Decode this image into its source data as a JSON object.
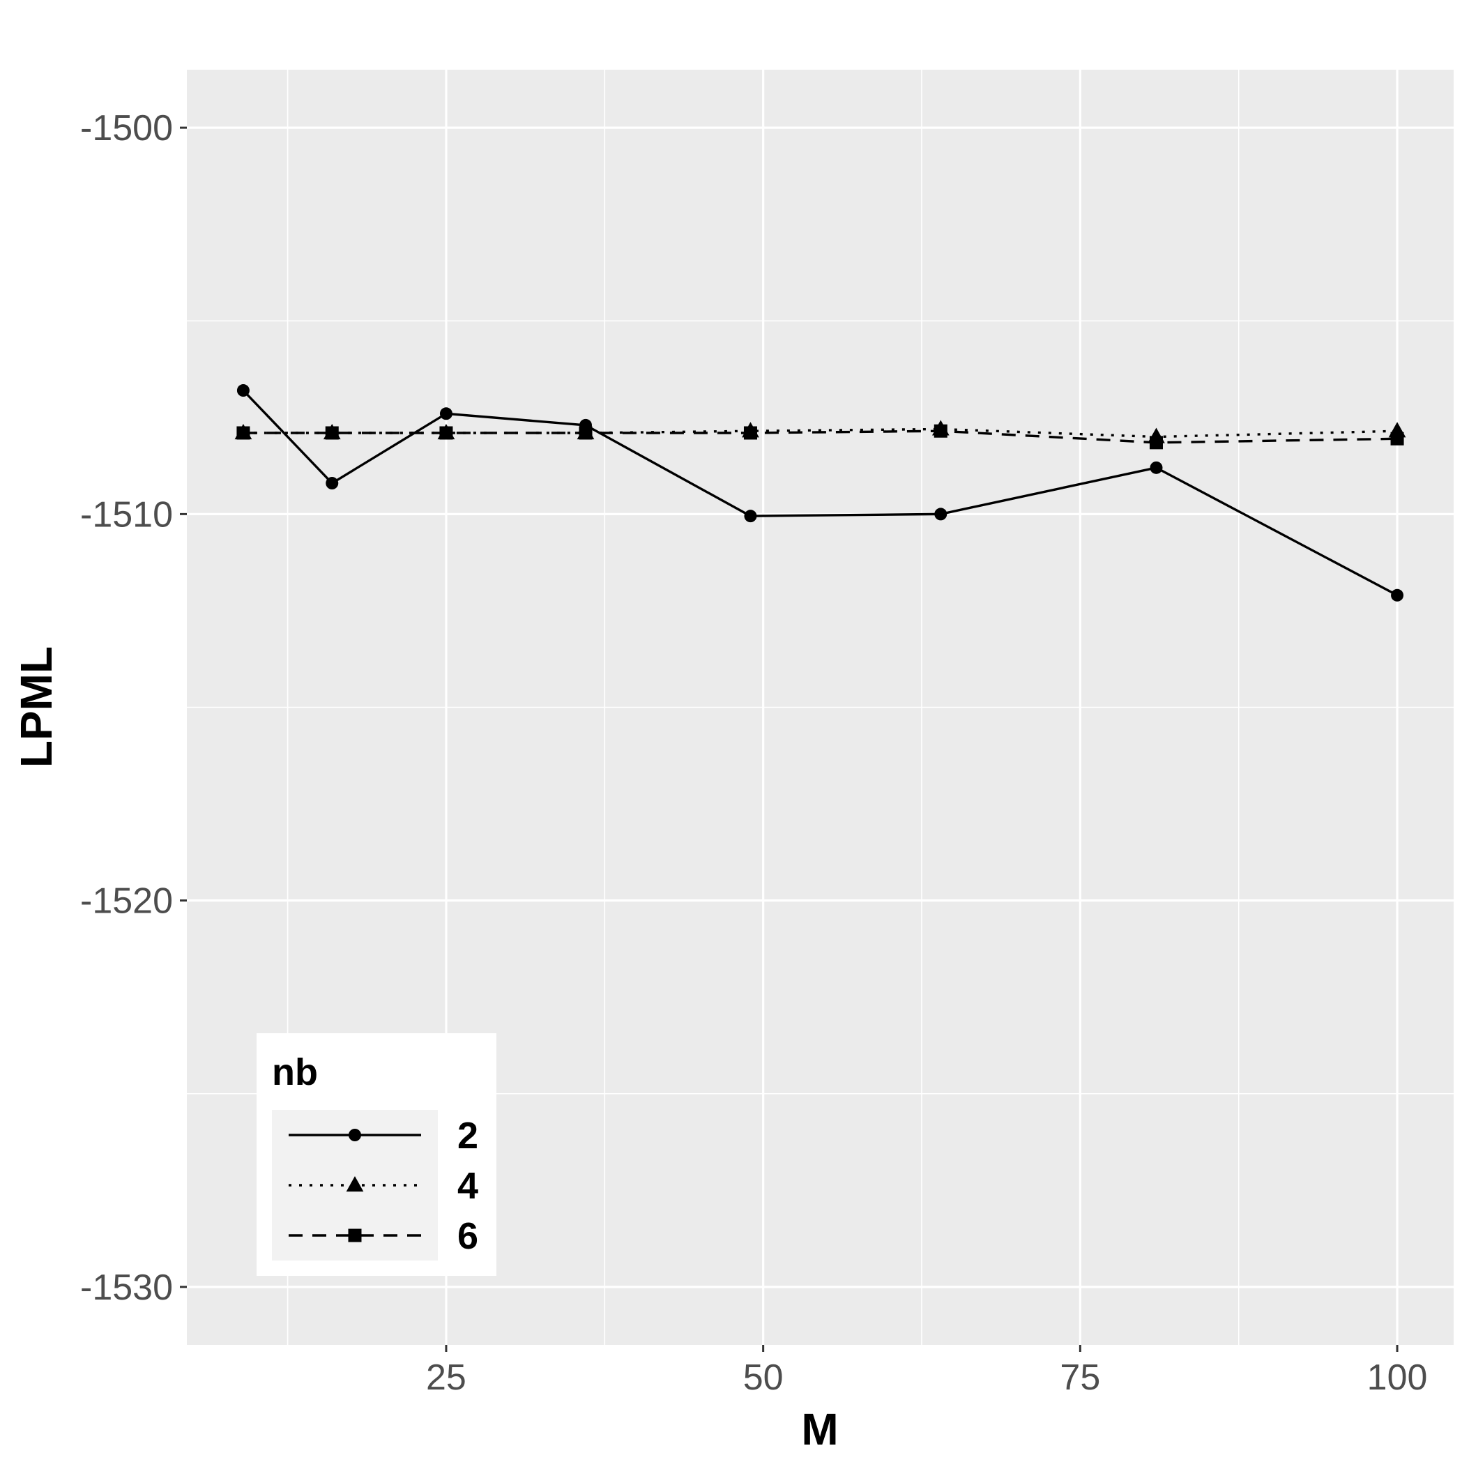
{
  "chart_data": {
    "type": "line",
    "title": "",
    "xlabel": "M",
    "ylabel": "LPML",
    "xlim": [
      4.55,
      104.45
    ],
    "ylim": [
      -1531.5,
      -1498.5
    ],
    "x_ticks": [
      25,
      50,
      75,
      100
    ],
    "x_tick_labels": [
      "25",
      "50",
      "75",
      "100"
    ],
    "y_ticks": [
      -1530,
      -1520,
      -1510,
      -1500
    ],
    "y_tick_labels": [
      "-1530",
      "-1520",
      "-1510",
      "-1500"
    ],
    "grid": true,
    "background": "#ebebeb",
    "legend": {
      "title": "nb",
      "placement": "bottom-left"
    },
    "x": [
      9,
      16,
      25,
      36,
      49,
      64,
      81,
      100
    ],
    "series": [
      {
        "name": "2",
        "shape": "circle",
        "linetype": "solid",
        "values": [
          -1506.8,
          -1509.2,
          -1507.4,
          -1507.7,
          -1510.05,
          -1510.0,
          -1508.8,
          -1512.1
        ]
      },
      {
        "name": "4",
        "shape": "triangle",
        "linetype": "dotted",
        "values": [
          -1507.9,
          -1507.9,
          -1507.9,
          -1507.9,
          -1507.85,
          -1507.8,
          -1508.0,
          -1507.85
        ]
      },
      {
        "name": "6",
        "shape": "square",
        "linetype": "dashed",
        "values": [
          -1507.9,
          -1507.9,
          -1507.9,
          -1507.9,
          -1507.9,
          -1507.85,
          -1508.15,
          -1508.05
        ]
      }
    ]
  }
}
